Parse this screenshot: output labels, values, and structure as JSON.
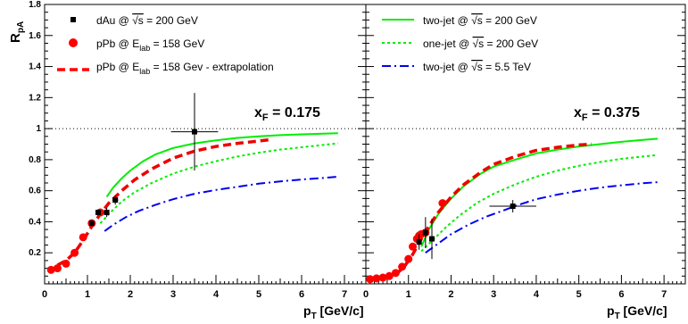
{
  "figure": {
    "ylabel": "R",
    "ylabel_sub": "pA",
    "xlabel": "p",
    "xlabel_sub": "T",
    "xlabel_unit": " [GeV/c]"
  },
  "chart_data": [
    {
      "type": "line",
      "panel": "left",
      "annotation": {
        "base": "x",
        "sub": "F",
        "value": " = 0.175"
      },
      "xlim": [
        0,
        7.5
      ],
      "ylim": [
        0,
        1.8
      ],
      "x_ticks": [
        0,
        1,
        2,
        3,
        4,
        5,
        6,
        7
      ],
      "y_ticks": [
        0.2,
        0.4,
        0.6,
        0.8,
        1.0,
        1.2,
        1.4,
        1.6,
        1.8
      ],
      "reference_line": 1.0,
      "legend": [
        {
          "id": "dAu",
          "marker": "square",
          "color": "#000000",
          "parts": [
            [
              "dAu @ ",
              "n"
            ],
            [
              "√s",
              "sqrt"
            ],
            [
              " = 200 GeV",
              "n"
            ]
          ]
        },
        {
          "id": "pPb",
          "marker": "circle",
          "color": "#ff0000",
          "parts": [
            [
              "pPb @ E",
              "n"
            ],
            [
              "lab",
              "sub"
            ],
            [
              " = 158 GeV",
              "n"
            ]
          ]
        },
        {
          "id": "pPb_extrap",
          "marker": "dash",
          "color": "#ff0000",
          "parts": [
            [
              "pPb @ E",
              "n"
            ],
            [
              "lab",
              "sub"
            ],
            [
              " = 158 Gev - extrapolation",
              "n"
            ]
          ]
        }
      ],
      "series": [
        {
          "id": "two_jet_200",
          "style": "solid",
          "color": "#00ee00",
          "points": [
            [
              1.45,
              0.56
            ],
            [
              1.6,
              0.62
            ],
            [
              1.8,
              0.68
            ],
            [
              2.0,
              0.73
            ],
            [
              2.3,
              0.79
            ],
            [
              2.6,
              0.835
            ],
            [
              3.0,
              0.875
            ],
            [
              3.5,
              0.905
            ],
            [
              4.0,
              0.925
            ],
            [
              4.5,
              0.94
            ],
            [
              5.0,
              0.95
            ],
            [
              5.5,
              0.958
            ],
            [
              6.0,
              0.963
            ],
            [
              6.5,
              0.967
            ],
            [
              6.85,
              0.97
            ]
          ]
        },
        {
          "id": "one_jet_200",
          "style": "dotted",
          "color": "#00ee00",
          "points": [
            [
              1.3,
              0.39
            ],
            [
              1.5,
              0.45
            ],
            [
              1.8,
              0.53
            ],
            [
              2.1,
              0.59
            ],
            [
              2.5,
              0.65
            ],
            [
              3.0,
              0.71
            ],
            [
              3.5,
              0.755
            ],
            [
              4.0,
              0.79
            ],
            [
              4.5,
              0.82
            ],
            [
              5.0,
              0.845
            ],
            [
              5.5,
              0.865
            ],
            [
              6.0,
              0.88
            ],
            [
              6.5,
              0.895
            ],
            [
              6.85,
              0.905
            ]
          ]
        },
        {
          "id": "two_jet_5500",
          "style": "dashdot",
          "color": "#0000ee",
          "points": [
            [
              1.4,
              0.34
            ],
            [
              1.6,
              0.38
            ],
            [
              1.9,
              0.43
            ],
            [
              2.2,
              0.47
            ],
            [
              2.6,
              0.51
            ],
            [
              3.0,
              0.545
            ],
            [
              3.5,
              0.58
            ],
            [
              4.0,
              0.605
            ],
            [
              4.5,
              0.625
            ],
            [
              5.0,
              0.645
            ],
            [
              5.5,
              0.66
            ],
            [
              6.0,
              0.672
            ],
            [
              6.5,
              0.682
            ],
            [
              6.85,
              0.69
            ]
          ]
        },
        {
          "id": "pPb_extrapolation",
          "style": "dashed",
          "color": "#ee0000",
          "points": [
            [
              0.3,
              0.12
            ],
            [
              0.5,
              0.15
            ],
            [
              0.7,
              0.2
            ],
            [
              0.9,
              0.28
            ],
            [
              1.1,
              0.37
            ],
            [
              1.3,
              0.45
            ],
            [
              1.5,
              0.52
            ],
            [
              1.8,
              0.6
            ],
            [
              2.1,
              0.67
            ],
            [
              2.5,
              0.74
            ],
            [
              3.0,
              0.81
            ],
            [
              3.5,
              0.855
            ],
            [
              4.0,
              0.885
            ],
            [
              4.5,
              0.905
            ],
            [
              5.0,
              0.92
            ],
            [
              5.3,
              0.93
            ]
          ]
        },
        {
          "id": "pPb_158",
          "style": "markers",
          "marker": "circle",
          "color": "#ff0000",
          "points": [
            [
              0.15,
              0.09
            ],
            [
              0.3,
              0.1
            ],
            [
              0.5,
              0.13
            ],
            [
              0.7,
              0.2
            ],
            [
              0.9,
              0.3
            ],
            [
              1.1,
              0.39
            ],
            [
              1.3,
              0.46
            ]
          ]
        },
        {
          "id": "dAu_200",
          "style": "markers",
          "marker": "square",
          "color": "#000000",
          "points": [
            [
              1.1,
              0.39,
              0.05,
              0.02
            ],
            [
              1.25,
              0.46,
              0.05,
              0.02
            ],
            [
              1.45,
              0.46,
              0.05,
              0.03
            ],
            [
              1.65,
              0.54,
              0.07,
              0.03
            ],
            [
              3.5,
              0.98,
              0.55,
              0.25
            ]
          ]
        }
      ]
    },
    {
      "type": "line",
      "panel": "right",
      "annotation": {
        "base": "x",
        "sub": "F",
        "value": " = 0.375"
      },
      "xlim": [
        0,
        7.5
      ],
      "ylim": [
        0,
        1.8
      ],
      "x_ticks": [
        0,
        1,
        2,
        3,
        4,
        5,
        6,
        7
      ],
      "reference_line": 1.0,
      "legend": [
        {
          "id": "two_jet_200",
          "marker": "line-solid",
          "color": "#00ee00",
          "parts": [
            [
              "two-jet @ ",
              "n"
            ],
            [
              "√s",
              "sqrt"
            ],
            [
              " = 200 GeV",
              "n"
            ]
          ]
        },
        {
          "id": "one_jet_200",
          "marker": "line-dotted",
          "color": "#00ee00",
          "parts": [
            [
              "one-jet @ ",
              "n"
            ],
            [
              "√s",
              "sqrt"
            ],
            [
              " = 200 GeV",
              "n"
            ]
          ]
        },
        {
          "id": "two_jet_5500",
          "marker": "line-dashdot",
          "color": "#0000ee",
          "parts": [
            [
              "two-jet @ ",
              "n"
            ],
            [
              "√s",
              "sqrt"
            ],
            [
              " = 5.5 TeV",
              "n"
            ]
          ]
        }
      ],
      "series": [
        {
          "id": "two_jet_200",
          "style": "solid",
          "color": "#00ee00",
          "points": [
            [
              1.3,
              0.24
            ],
            [
              1.5,
              0.36
            ],
            [
              1.7,
              0.45
            ],
            [
              2.0,
              0.55
            ],
            [
              2.3,
              0.63
            ],
            [
              2.7,
              0.71
            ],
            [
              3.0,
              0.755
            ],
            [
              3.5,
              0.8
            ],
            [
              4.0,
              0.84
            ],
            [
              4.5,
              0.865
            ],
            [
              5.0,
              0.885
            ],
            [
              5.5,
              0.9
            ],
            [
              6.0,
              0.915
            ],
            [
              6.5,
              0.927
            ],
            [
              6.85,
              0.935
            ]
          ]
        },
        {
          "id": "one_jet_200",
          "style": "dotted",
          "color": "#00ee00",
          "points": [
            [
              1.3,
              0.21
            ],
            [
              1.6,
              0.29
            ],
            [
              1.9,
              0.37
            ],
            [
              2.2,
              0.44
            ],
            [
              2.6,
              0.52
            ],
            [
              3.0,
              0.58
            ],
            [
              3.5,
              0.64
            ],
            [
              4.0,
              0.69
            ],
            [
              4.5,
              0.73
            ],
            [
              5.0,
              0.76
            ],
            [
              5.5,
              0.785
            ],
            [
              6.0,
              0.805
            ],
            [
              6.5,
              0.82
            ],
            [
              6.85,
              0.83
            ]
          ]
        },
        {
          "id": "two_jet_5500",
          "style": "dashdot",
          "color": "#0000ee",
          "points": [
            [
              1.4,
              0.2
            ],
            [
              1.7,
              0.26
            ],
            [
              2.0,
              0.32
            ],
            [
              2.4,
              0.38
            ],
            [
              2.8,
              0.43
            ],
            [
              3.2,
              0.47
            ],
            [
              3.6,
              0.51
            ],
            [
              4.0,
              0.545
            ],
            [
              4.5,
              0.575
            ],
            [
              5.0,
              0.6
            ],
            [
              5.5,
              0.62
            ],
            [
              6.0,
              0.635
            ],
            [
              6.5,
              0.648
            ],
            [
              6.85,
              0.655
            ]
          ]
        },
        {
          "id": "pPb_extrapolation",
          "style": "dashed",
          "color": "#ee0000",
          "points": [
            [
              0.7,
              0.06
            ],
            [
              0.9,
              0.11
            ],
            [
              1.1,
              0.19
            ],
            [
              1.3,
              0.29
            ],
            [
              1.5,
              0.38
            ],
            [
              1.7,
              0.46
            ],
            [
              2.0,
              0.56
            ],
            [
              2.3,
              0.64
            ],
            [
              2.7,
              0.72
            ],
            [
              3.0,
              0.77
            ],
            [
              3.5,
              0.82
            ],
            [
              4.0,
              0.86
            ],
            [
              4.5,
              0.88
            ],
            [
              5.0,
              0.895
            ],
            [
              5.3,
              0.9
            ]
          ]
        },
        {
          "id": "pPb_158",
          "style": "markers",
          "marker": "circle",
          "color": "#ff0000",
          "points": [
            [
              0.1,
              0.03
            ],
            [
              0.25,
              0.035
            ],
            [
              0.4,
              0.04
            ],
            [
              0.55,
              0.05
            ],
            [
              0.7,
              0.07
            ],
            [
              0.85,
              0.11
            ],
            [
              1.0,
              0.16
            ],
            [
              1.1,
              0.24
            ],
            [
              1.2,
              0.29
            ],
            [
              1.25,
              0.31
            ],
            [
              1.3,
              0.32
            ],
            [
              1.4,
              0.33
            ],
            [
              1.8,
              0.52
            ]
          ]
        },
        {
          "id": "dAu_200",
          "style": "markers",
          "marker": "square",
          "color": "#000000",
          "points": [
            [
              1.25,
              0.27,
              0.05,
              0.05
            ],
            [
              1.4,
              0.33,
              0.05,
              0.1
            ],
            [
              1.55,
              0.29,
              0.05,
              0.13
            ],
            [
              3.45,
              0.5,
              0.55,
              0.04
            ]
          ]
        }
      ]
    }
  ]
}
